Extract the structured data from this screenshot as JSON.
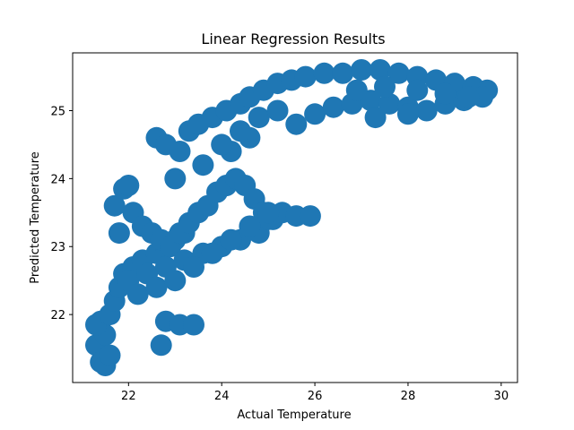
{
  "chart_data": {
    "type": "scatter",
    "title": "Linear Regression Results",
    "xlabel": "Actual Temperature",
    "ylabel": "Predicted Temperature",
    "xlim": [
      20.8,
      30.35
    ],
    "ylim": [
      21.0,
      25.85
    ],
    "x_ticks": [
      22,
      24,
      26,
      28,
      30
    ],
    "y_ticks": [
      22,
      23,
      24,
      25
    ],
    "x_tick_labels": [
      "22",
      "24",
      "26",
      "28",
      "30"
    ],
    "y_tick_labels": [
      "22",
      "23",
      "24",
      "25"
    ],
    "grid": false,
    "legend": "none",
    "marker_color": "#1f77b4",
    "series": [
      {
        "x": [
          21.3,
          21.4,
          21.5,
          21.6,
          21.5,
          21.4,
          21.3,
          21.6,
          21.7,
          21.8,
          21.9,
          22.1,
          22.3,
          22.6,
          22.8,
          23.0,
          23.2,
          22.7,
          22.8,
          23.1,
          23.4,
          21.8,
          21.7,
          21.9,
          22.0,
          22.1,
          22.3,
          22.5,
          22.7,
          22.9,
          23.1,
          23.3,
          23.5,
          23.7,
          23.9,
          24.1,
          24.3,
          24.5,
          24.7,
          24.9,
          25.1,
          22.0,
          22.4,
          22.8,
          23.2,
          23.6,
          24.0,
          24.4,
          24.8,
          25.0,
          25.3,
          25.6,
          25.9,
          24.2,
          24.6,
          22.2,
          22.6,
          23.0,
          23.4,
          23.8,
          24.2,
          24.6,
          25.0,
          23.0,
          23.6,
          24.0,
          24.4,
          24.8,
          25.2,
          22.6,
          22.8,
          23.1,
          23.3,
          23.5,
          23.8,
          24.1,
          24.4,
          24.6,
          24.9,
          25.2,
          25.5,
          25.8,
          26.2,
          26.6,
          27.0,
          27.4,
          27.8,
          28.2,
          28.6,
          29.0,
          29.4,
          29.7,
          25.6,
          26.0,
          26.4,
          26.8,
          27.2,
          27.6,
          28.0,
          28.4,
          28.8,
          29.2,
          29.6,
          26.9,
          27.5,
          28.2,
          28.8,
          29.3,
          27.3,
          28.0
        ],
        "y": [
          21.55,
          21.3,
          21.25,
          21.4,
          21.7,
          21.9,
          21.85,
          22.0,
          22.2,
          22.4,
          22.6,
          22.7,
          22.8,
          22.9,
          23.0,
          23.1,
          23.2,
          21.55,
          21.9,
          21.85,
          21.85,
          23.2,
          23.6,
          23.85,
          23.9,
          23.5,
          23.3,
          23.2,
          23.1,
          23.0,
          23.2,
          23.35,
          23.5,
          23.6,
          23.8,
          23.9,
          24.0,
          23.9,
          23.7,
          23.5,
          23.4,
          22.5,
          22.6,
          22.7,
          22.8,
          22.9,
          23.0,
          23.1,
          23.2,
          23.4,
          23.5,
          23.45,
          23.45,
          24.4,
          24.6,
          22.3,
          22.4,
          22.5,
          22.7,
          22.9,
          23.1,
          23.3,
          23.5,
          24.0,
          24.2,
          24.5,
          24.7,
          24.9,
          25.0,
          24.6,
          24.5,
          24.4,
          24.7,
          24.8,
          24.9,
          25.0,
          25.1,
          25.2,
          25.3,
          25.4,
          25.45,
          25.5,
          25.55,
          25.55,
          25.6,
          25.6,
          25.55,
          25.5,
          25.45,
          25.4,
          25.35,
          25.3,
          24.8,
          24.95,
          25.05,
          25.1,
          25.15,
          25.1,
          25.05,
          25.0,
          25.1,
          25.15,
          25.2,
          25.3,
          25.35,
          25.3,
          25.25,
          25.2,
          24.9,
          24.95
        ]
      }
    ]
  }
}
